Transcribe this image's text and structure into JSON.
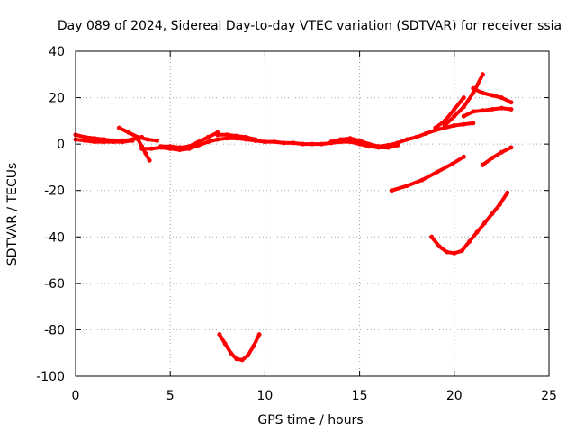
{
  "chart_data": {
    "type": "scatter",
    "title": "Day 089 of 2024, Sidereal Day-to-day VTEC variation (SDTVAR) for receiver ssia",
    "xlabel": "GPS time / hours",
    "ylabel": "SDTVAR / TECUs",
    "xlim": [
      0,
      25
    ],
    "ylim": [
      -100,
      40
    ],
    "xticks": [
      "0",
      "5",
      "10",
      "15",
      "20",
      "25"
    ],
    "yticks": [
      "-100",
      "-80",
      "-60",
      "-40",
      "-20",
      "0",
      "20",
      "40"
    ],
    "grid": true,
    "legend": "none",
    "series_color": "#ff0000",
    "series": [
      {
        "x": [
          0.0,
          0.5,
          1.0,
          1.5,
          2.0,
          2.5,
          3.0,
          3.5
        ],
        "y": [
          4.0,
          3.0,
          2.5,
          2.0,
          1.5,
          1.5,
          2.0,
          3.0
        ]
      },
      {
        "x": [
          0.0,
          0.5,
          1.0,
          1.5,
          2.0,
          2.5,
          3.0
        ],
        "y": [
          2.0,
          1.5,
          1.0,
          1.0,
          1.0,
          1.0,
          1.5
        ]
      },
      {
        "x": [
          2.3,
          2.8,
          3.3,
          3.8,
          4.3
        ],
        "y": [
          7.0,
          5.0,
          3.0,
          2.0,
          1.5
        ]
      },
      {
        "x": [
          3.3,
          3.5,
          3.7,
          3.9
        ],
        "y": [
          2.0,
          -1.0,
          -4.0,
          -7.0
        ]
      },
      {
        "x": [
          3.5,
          4.0,
          4.5,
          5.0,
          5.5,
          6.0,
          6.5,
          7.0,
          7.5,
          8.0,
          8.5,
          9.0,
          9.5
        ],
        "y": [
          -2.0,
          -2.0,
          -1.5,
          -2.0,
          -2.5,
          -2.0,
          -0.5,
          1.0,
          2.0,
          2.5,
          2.5,
          2.0,
          1.5
        ]
      },
      {
        "x": [
          4.5,
          5.0,
          5.5,
          6.0,
          6.5,
          7.0,
          7.5
        ],
        "y": [
          -1.0,
          -1.0,
          -1.5,
          -1.0,
          1.0,
          3.0,
          5.0
        ]
      },
      {
        "x": [
          7.5,
          8.0,
          8.5,
          9.0,
          9.5
        ],
        "y": [
          4.0,
          4.0,
          3.5,
          3.0,
          2.0
        ]
      },
      {
        "x": [
          7.6,
          7.9,
          8.2,
          8.5,
          8.8,
          9.1,
          9.4,
          9.7
        ],
        "y": [
          -82.0,
          -86.0,
          -90.0,
          -92.5,
          -93.0,
          -91.0,
          -87.0,
          -82.0
        ]
      },
      {
        "x": [
          9.5,
          10.0,
          10.5,
          11.0,
          11.5,
          12.0,
          12.5,
          13.0,
          13.5,
          14.0,
          14.5,
          15.0,
          15.5,
          16.0,
          16.5,
          17.0
        ],
        "y": [
          1.5,
          1.0,
          1.0,
          0.5,
          0.5,
          0.0,
          0.0,
          0.0,
          0.5,
          1.0,
          1.0,
          0.0,
          -1.0,
          -1.5,
          -1.5,
          -0.5
        ]
      },
      {
        "x": [
          13.5,
          14.0,
          14.5,
          15.0,
          15.5,
          16.0
        ],
        "y": [
          1.0,
          2.0,
          2.5,
          1.5,
          0.0,
          -1.0
        ]
      },
      {
        "x": [
          15.5,
          16.0,
          16.5,
          17.0,
          17.5,
          18.0,
          18.5,
          19.0,
          19.5,
          20.0,
          20.5,
          21.0
        ],
        "y": [
          -1.0,
          -1.0,
          -0.5,
          0.5,
          2.0,
          3.0,
          4.5,
          6.0,
          7.0,
          8.0,
          8.5,
          9.0
        ]
      },
      {
        "x": [
          19.0,
          19.5,
          20.0,
          20.5
        ],
        "y": [
          7.0,
          10.0,
          15.0,
          20.0
        ]
      },
      {
        "x": [
          19.5,
          20.0,
          20.5,
          21.0,
          21.5
        ],
        "y": [
          8.0,
          12.0,
          16.0,
          22.0,
          30.0
        ]
      },
      {
        "x": [
          21.0,
          21.5,
          22.0,
          22.5,
          23.0
        ],
        "y": [
          24.0,
          22.0,
          21.0,
          20.0,
          18.0
        ]
      },
      {
        "x": [
          20.5,
          21.0,
          21.5,
          22.0,
          22.5,
          23.0
        ],
        "y": [
          12.0,
          14.0,
          14.5,
          15.0,
          15.5,
          15.0
        ]
      },
      {
        "x": [
          16.7,
          17.5,
          18.3,
          19.1,
          19.9,
          20.5
        ],
        "y": [
          -20.0,
          -18.0,
          -15.5,
          -12.0,
          -8.5,
          -5.5
        ]
      },
      {
        "x": [
          18.8,
          19.2,
          19.6,
          20.0,
          20.4,
          20.8,
          21.2,
          21.6,
          22.0,
          22.4,
          22.8
        ],
        "y": [
          -40.0,
          -44.0,
          -46.5,
          -47.0,
          -46.0,
          -42.0,
          -38.0,
          -34.0,
          -30.0,
          -26.0,
          -21.0
        ]
      },
      {
        "x": [
          21.5,
          22.0,
          22.5,
          23.0
        ],
        "y": [
          -9.0,
          -6.0,
          -3.5,
          -1.5
        ]
      }
    ]
  }
}
